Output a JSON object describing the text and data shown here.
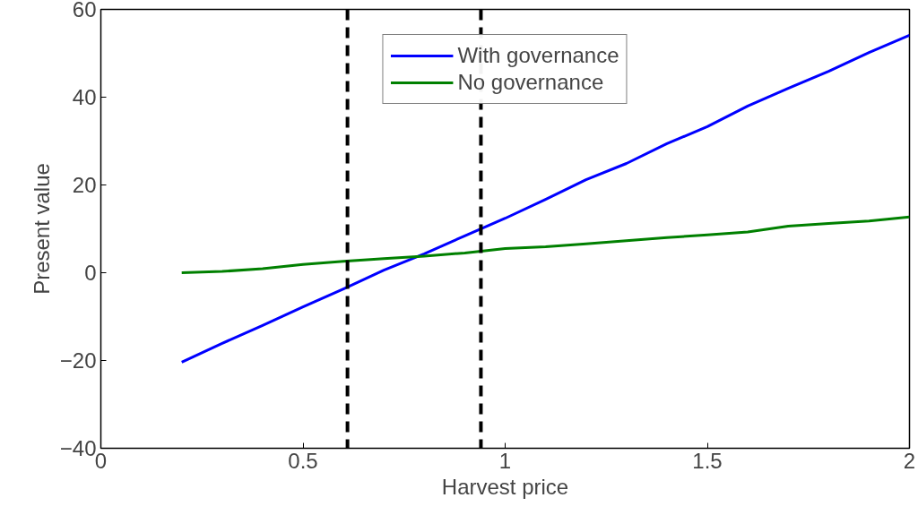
{
  "chart_data": {
    "type": "line",
    "xlabel": "Harvest price",
    "ylabel": "Present value",
    "x": [
      0.2,
      0.3,
      0.4,
      0.5,
      0.6,
      0.7,
      0.8,
      0.9,
      1.0,
      1.1,
      1.2,
      1.3,
      1.4,
      1.5,
      1.6,
      1.7,
      1.8,
      1.9,
      2.0
    ],
    "series": [
      {
        "name": "With governance",
        "color": "#0000ff",
        "values": [
          -20.4,
          -16.1,
          -12.0,
          -7.8,
          -3.7,
          0.6,
          4.3,
          8.4,
          12.4,
          16.7,
          21.2,
          24.9,
          29.4,
          33.3,
          38.0,
          42.0,
          45.9,
          50.2,
          54.1
        ]
      },
      {
        "name": "No governance",
        "color": "#008000",
        "values": [
          0.0,
          0.3,
          0.9,
          1.9,
          2.6,
          3.2,
          3.8,
          4.5,
          5.5,
          5.9,
          6.6,
          7.3,
          8.0,
          8.6,
          9.3,
          10.6,
          11.2,
          11.8,
          12.7
        ]
      }
    ],
    "ref_lines": [
      {
        "axis": "x",
        "value": 0.61,
        "color": "#000000",
        "line_style": "dashed"
      },
      {
        "axis": "x",
        "value": 0.94,
        "color": "#000000",
        "line_style": "dashed"
      }
    ],
    "xlim": [
      0,
      2
    ],
    "xticks": [
      0,
      0.5,
      1,
      1.5,
      2
    ],
    "ylim": [
      -40,
      60
    ],
    "yticks": [
      -40,
      -20,
      0,
      20,
      40,
      60
    ],
    "grid": false,
    "legend": "top",
    "marker": "none",
    "line_style": "solid"
  }
}
